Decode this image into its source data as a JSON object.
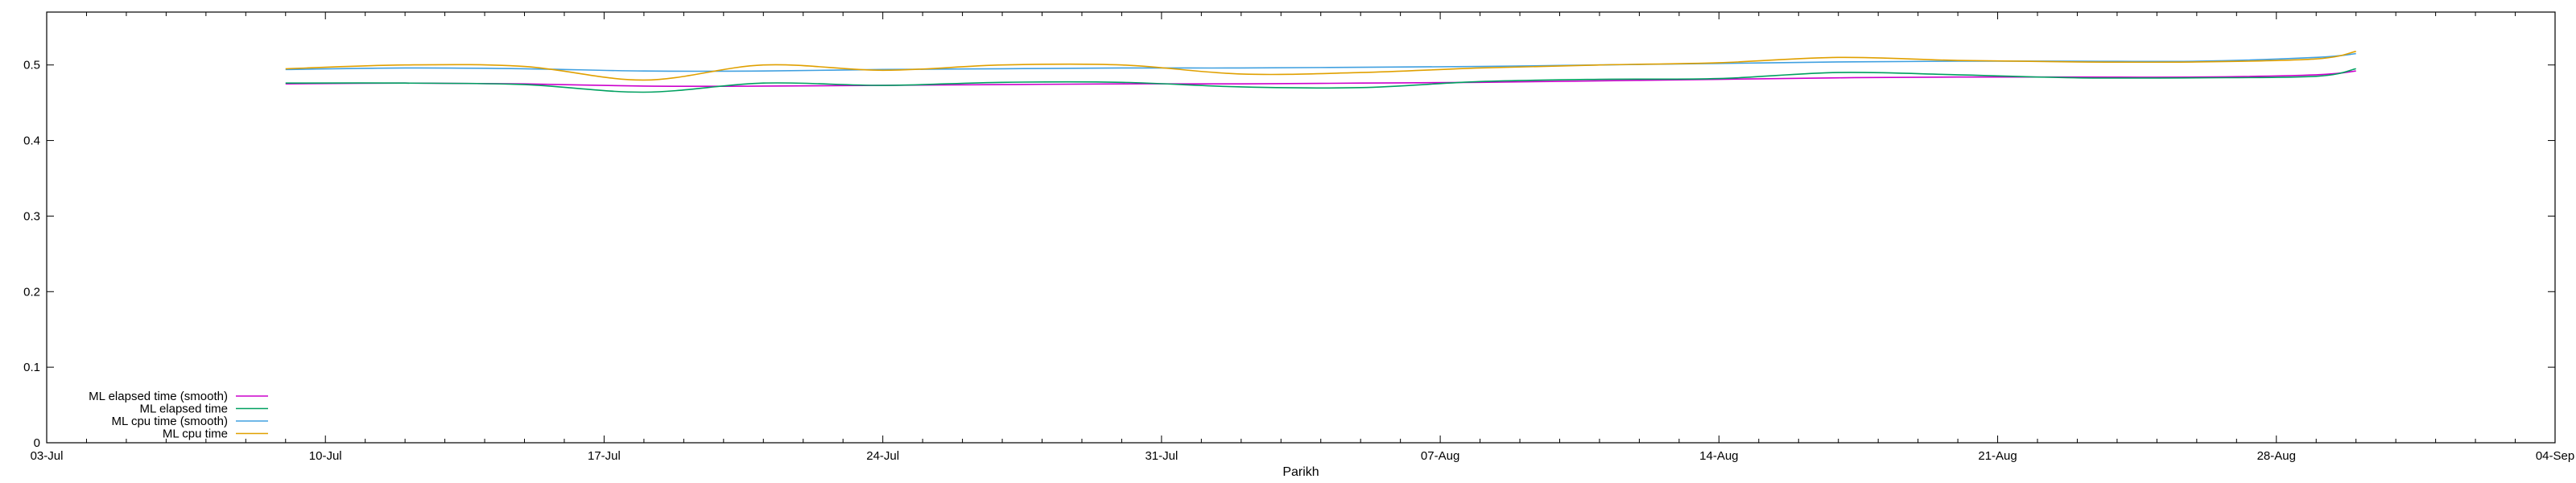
{
  "chart_data": {
    "type": "line",
    "title": "",
    "xlabel": "Parikh",
    "ylabel": "",
    "x_ticks": [
      "03-Jul",
      "10-Jul",
      "17-Jul",
      "24-Jul",
      "31-Jul",
      "07-Aug",
      "14-Aug",
      "21-Aug",
      "28-Aug",
      "04-Sep"
    ],
    "y_ticks": [
      "0",
      "0.1",
      "0.2",
      "0.3",
      "0.4",
      "0.5"
    ],
    "xlim": [
      "2000-07-03",
      "2000-09-04"
    ],
    "ylim": [
      0,
      0.57
    ],
    "grid": false,
    "legend_position": "bottom-left",
    "series": [
      {
        "name": "ML elapsed time (smooth)",
        "color": "#cc00cc",
        "x": [
          "2000-07-09",
          "2000-07-12",
          "2000-07-15",
          "2000-07-18",
          "2000-07-21",
          "2000-07-24",
          "2000-07-27",
          "2000-07-30",
          "2000-08-02",
          "2000-08-05",
          "2000-08-08",
          "2000-08-11",
          "2000-08-14",
          "2000-08-17",
          "2000-08-20",
          "2000-08-23",
          "2000-08-26",
          "2000-08-29",
          "2000-08-30"
        ],
        "y": [
          0.475,
          0.476,
          0.475,
          0.472,
          0.472,
          0.473,
          0.474,
          0.475,
          0.475,
          0.476,
          0.477,
          0.479,
          0.481,
          0.483,
          0.484,
          0.484,
          0.484,
          0.487,
          0.492
        ]
      },
      {
        "name": "ML elapsed time",
        "color": "#00a060",
        "x": [
          "2000-07-09",
          "2000-07-12",
          "2000-07-15",
          "2000-07-18",
          "2000-07-21",
          "2000-07-24",
          "2000-07-27",
          "2000-07-30",
          "2000-08-02",
          "2000-08-05",
          "2000-08-08",
          "2000-08-11",
          "2000-08-14",
          "2000-08-17",
          "2000-08-20",
          "2000-08-23",
          "2000-08-26",
          "2000-08-29",
          "2000-08-30"
        ],
        "y": [
          0.476,
          0.476,
          0.474,
          0.464,
          0.476,
          0.473,
          0.477,
          0.477,
          0.471,
          0.47,
          0.478,
          0.481,
          0.482,
          0.49,
          0.487,
          0.483,
          0.483,
          0.485,
          0.495
        ]
      },
      {
        "name": "ML cpu time (smooth)",
        "color": "#40a0e0",
        "x": [
          "2000-07-09",
          "2000-07-12",
          "2000-07-15",
          "2000-07-18",
          "2000-07-21",
          "2000-07-24",
          "2000-07-27",
          "2000-07-30",
          "2000-08-02",
          "2000-08-05",
          "2000-08-08",
          "2000-08-11",
          "2000-08-14",
          "2000-08-17",
          "2000-08-20",
          "2000-08-23",
          "2000-08-26",
          "2000-08-29",
          "2000-08-30"
        ],
        "y": [
          0.494,
          0.496,
          0.495,
          0.492,
          0.492,
          0.494,
          0.495,
          0.496,
          0.496,
          0.497,
          0.498,
          0.5,
          0.502,
          0.504,
          0.505,
          0.505,
          0.505,
          0.51,
          0.515
        ]
      },
      {
        "name": "ML cpu time",
        "color": "#e0a000",
        "x": [
          "2000-07-09",
          "2000-07-12",
          "2000-07-15",
          "2000-07-18",
          "2000-07-21",
          "2000-07-24",
          "2000-07-27",
          "2000-07-30",
          "2000-08-02",
          "2000-08-05",
          "2000-08-08",
          "2000-08-11",
          "2000-08-14",
          "2000-08-17",
          "2000-08-20",
          "2000-08-23",
          "2000-08-26",
          "2000-08-29",
          "2000-08-30"
        ],
        "y": [
          0.495,
          0.5,
          0.498,
          0.48,
          0.5,
          0.493,
          0.5,
          0.5,
          0.488,
          0.49,
          0.496,
          0.5,
          0.503,
          0.51,
          0.506,
          0.504,
          0.504,
          0.508,
          0.518
        ]
      }
    ]
  }
}
